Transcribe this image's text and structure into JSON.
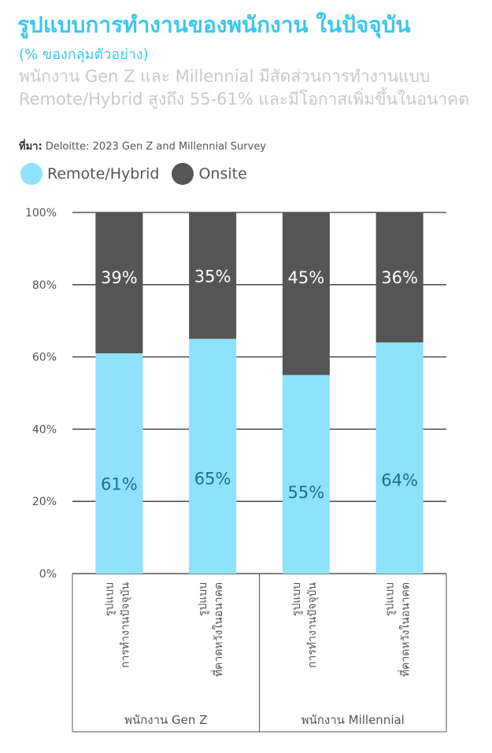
{
  "title": "รูปแบบการทำงานของพนักงาน ในปัจจุบัน",
  "subtitle": "(% ของกลุ่มตัวอย่าง)",
  "description": "พนักงาน Gen Z และ Millennial มีสัดส่วนการทำงานแบบ Remote/Hybrid สูงถึง 55-61% และมีโอกาสเพิ่มขึ้นในอนาคต",
  "source_label": "ที่มา:",
  "source_text": " Deloitte: 2023 Gen Z and Millennial Survey",
  "colors": {
    "remote": "#8ee2fb",
    "onsite": "#555555",
    "remote_label": "#1f6f8c",
    "onsite_label": "#ffffff"
  },
  "chart_data": {
    "type": "bar",
    "stacked": true,
    "ylim": [
      0,
      100
    ],
    "yticks": [
      "0%",
      "20%",
      "40%",
      "60%",
      "80%",
      "100%"
    ],
    "categories": [
      {
        "lines": [
          "รูปแบบ",
          "การทำงานปัจจุบัน"
        ],
        "group": "พนักงาน Gen Z"
      },
      {
        "lines": [
          "รูปแบบ",
          "ที่คาดหวังในอนาคต"
        ],
        "group": "พนักงาน Gen Z"
      },
      {
        "lines": [
          "รูปแบบ",
          "การทำงานปัจจุบัน"
        ],
        "group": "พนักงาน Millennial"
      },
      {
        "lines": [
          "รูปแบบ",
          "ที่คาดหวังในอนาคต"
        ],
        "group": "พนักงาน Millennial"
      }
    ],
    "groups": [
      "พนักงาน Gen Z",
      "พนักงาน Millennial"
    ],
    "series": [
      {
        "name": "Remote/Hybrid",
        "values": [
          61,
          65,
          55,
          64
        ],
        "labels": [
          "61%",
          "65%",
          "55%",
          "64%"
        ]
      },
      {
        "name": "Onsite",
        "values": [
          39,
          35,
          45,
          36
        ],
        "labels": [
          "39%",
          "35%",
          "45%",
          "36%"
        ]
      }
    ],
    "legend_position": "top-left",
    "grid": true
  }
}
